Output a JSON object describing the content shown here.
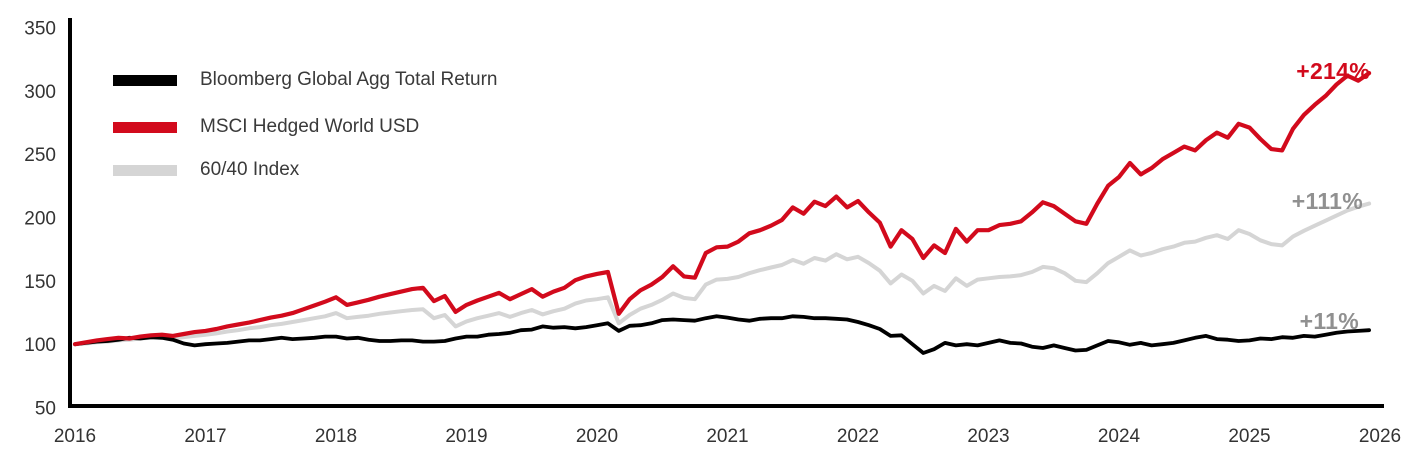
{
  "chart_data": {
    "type": "line",
    "title": "",
    "frequency": "monthly",
    "start": "2016-01",
    "end": "2025-12",
    "x_axis": {
      "labels": [
        "2016",
        "2017",
        "2018",
        "2019",
        "2020",
        "2021",
        "2022",
        "2023",
        "2024",
        "2025",
        "2026"
      ],
      "range": [
        2016,
        2026
      ],
      "grid": false
    },
    "y_axis": {
      "ticks": [
        50,
        100,
        150,
        200,
        250,
        300,
        350
      ],
      "range": [
        50,
        350
      ],
      "base_value": 100,
      "grid": false
    },
    "legend_position": "top-left-inside",
    "series": [
      {
        "name": "Bloomberg Global Agg Total Return",
        "color": "#000000",
        "end_label": "+11%",
        "end_value": 111,
        "values": [
          100,
          101,
          102,
          102.5,
          103.5,
          105,
          104.5,
          105.5,
          105,
          103.5,
          100.5,
          99,
          100,
          100.5,
          101,
          102,
          103,
          103,
          104,
          105,
          104,
          104.5,
          105,
          106,
          106,
          104.5,
          105,
          103.5,
          102.5,
          102.5,
          103,
          103,
          102,
          102,
          102.5,
          104.5,
          106,
          106,
          107.5,
          108,
          109,
          111,
          111.5,
          114,
          113,
          113.5,
          112.5,
          113.5,
          115,
          116.5,
          110.5,
          114.5,
          115,
          116.5,
          119,
          119.5,
          119,
          118.5,
          120.5,
          122,
          121,
          119.5,
          118.5,
          120,
          120.5,
          120.5,
          122,
          121.5,
          120.5,
          120.5,
          120,
          119.5,
          117.5,
          115,
          112,
          106.5,
          107,
          100,
          93,
          96,
          101,
          99,
          100,
          99,
          101,
          103,
          101,
          100.5,
          98,
          97,
          99,
          97,
          95,
          95.5,
          99,
          102.5,
          101.5,
          99.5,
          101,
          99,
          100,
          101,
          103,
          105,
          106.5,
          104,
          103.5,
          102.5,
          103,
          104.5,
          104,
          105.5,
          105,
          106.5,
          106,
          107.5,
          109,
          110,
          110.5,
          111
        ]
      },
      {
        "name": "MSCI Hedged World USD",
        "color": "#d20a1c",
        "end_label": "+214%",
        "end_value": 314,
        "values": [
          100,
          101.5,
          103,
          104,
          105,
          104.5,
          106,
          107,
          107.5,
          106.5,
          108,
          109.5,
          110.5,
          112,
          114,
          115.5,
          117,
          119,
          121,
          122.5,
          124.5,
          127.5,
          130.5,
          133.5,
          137,
          131,
          133,
          135,
          137.5,
          139.5,
          141.5,
          143.5,
          144.5,
          134,
          138,
          125.5,
          131,
          134.5,
          137.5,
          140.5,
          135.5,
          139.5,
          143.5,
          137.5,
          141.5,
          144.5,
          150.5,
          153.5,
          155.5,
          157,
          124,
          135.5,
          142.5,
          147,
          153,
          161.5,
          153.5,
          152.5,
          172,
          176.5,
          177,
          181,
          187.5,
          190,
          193.5,
          198,
          208,
          203,
          212.5,
          209,
          216.5,
          208,
          213,
          204,
          196,
          177,
          190,
          183,
          168,
          178,
          172,
          191,
          181,
          190,
          190,
          194,
          195,
          197,
          204,
          212,
          209,
          203,
          197,
          195,
          211,
          225,
          232,
          243,
          234,
          239,
          246,
          251,
          256,
          253,
          261,
          267,
          263,
          274,
          271,
          262,
          254,
          253,
          270,
          281,
          289,
          296,
          305,
          312,
          308,
          314
        ]
      },
      {
        "name": "60/40 Index",
        "color": "#d5d5d5",
        "end_label": "+111%",
        "end_value": 211,
        "values": [
          100,
          100.5,
          101.5,
          102,
          103,
          103.5,
          104.5,
          105,
          105.5,
          104.5,
          105.5,
          106.5,
          107.5,
          108.5,
          110,
          111,
          112.5,
          113.5,
          115,
          116,
          117.5,
          119,
          120.5,
          122,
          124.5,
          120.5,
          121.5,
          122.5,
          124,
          125,
          126,
          127,
          127.5,
          120.5,
          123,
          114,
          118,
          120.5,
          122.5,
          124.5,
          121.5,
          124.5,
          127,
          123.5,
          126,
          128,
          132,
          134.5,
          135.5,
          137,
          116.5,
          123,
          128,
          131,
          135,
          140,
          136.5,
          135.5,
          147,
          151,
          151.5,
          153,
          156,
          158.5,
          160.5,
          162.5,
          166.5,
          163.5,
          168,
          166,
          171,
          167,
          169,
          164,
          158,
          148,
          155,
          150,
          140,
          146,
          142,
          152,
          146,
          151,
          152,
          153,
          153.5,
          154.5,
          157,
          161,
          160,
          156,
          150,
          149,
          156,
          164,
          169,
          174,
          170,
          172,
          175,
          177,
          180,
          181,
          184,
          186,
          183,
          190,
          187,
          182,
          179,
          178,
          185,
          189.5,
          193.5,
          197.5,
          201.5,
          205.5,
          208.5,
          211
        ]
      }
    ]
  },
  "legend": {
    "items": [
      {
        "label": "Bloomberg Global Agg Total Return",
        "color": "#000000"
      },
      {
        "label": "MSCI Hedged World USD",
        "color": "#d20a1c"
      },
      {
        "label": "60/40 Index",
        "color": "#d5d5d5"
      }
    ]
  },
  "annotations": [
    {
      "text": "+214%",
      "color": "#d20a1c",
      "series": "MSCI Hedged World USD"
    },
    {
      "text": "+111%",
      "color": "#909090",
      "series": "60/40 Index"
    },
    {
      "text": "+11%",
      "color": "#909090",
      "series": "Bloomberg Global Agg Total Return"
    }
  ]
}
